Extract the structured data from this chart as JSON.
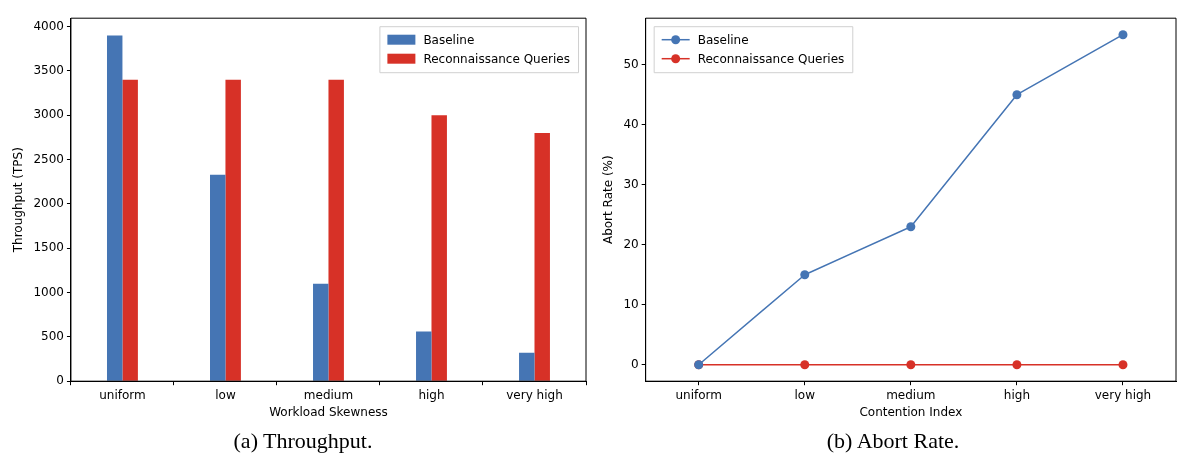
{
  "chart_data": [
    {
      "type": "bar",
      "xlabel": "Workload Skewness",
      "ylabel": "Throughput (TPS)",
      "categories": [
        "uniform",
        "low",
        "medium",
        "high",
        "very high"
      ],
      "series": [
        {
          "name": "Baseline",
          "color": "#4575b4",
          "values": [
            3900,
            2330,
            1100,
            560,
            320
          ]
        },
        {
          "name": "Reconnaissance Queries",
          "color": "#d73127",
          "values": [
            3400,
            3400,
            3400,
            3000,
            2800
          ]
        }
      ],
      "ylim": [
        0,
        4095
      ],
      "yticks": [
        0,
        500,
        1000,
        1500,
        2000,
        2500,
        3000,
        3500,
        4000
      ],
      "grid": false,
      "legend": "top right",
      "annotations": [
        "(a) Throughput."
      ]
    },
    {
      "type": "line",
      "xlabel": "Contention Index",
      "ylabel": "Abort Rate (%)",
      "categories": [
        "uniform",
        "low",
        "medium",
        "high",
        "very high"
      ],
      "series": [
        {
          "name": "Baseline",
          "color": "#4575b4",
          "values": [
            0,
            15,
            23,
            45,
            55
          ]
        },
        {
          "name": "Reconnaissance Queries",
          "color": "#d73127",
          "values": [
            0,
            0,
            0,
            0,
            0
          ]
        }
      ],
      "ylim": [
        -2.75,
        57.75
      ],
      "yticks": [
        0,
        10,
        20,
        30,
        40,
        50
      ],
      "grid": false,
      "legend": "top left",
      "marker": "circle",
      "annotations": [
        "(b) Abort Rate."
      ]
    }
  ]
}
